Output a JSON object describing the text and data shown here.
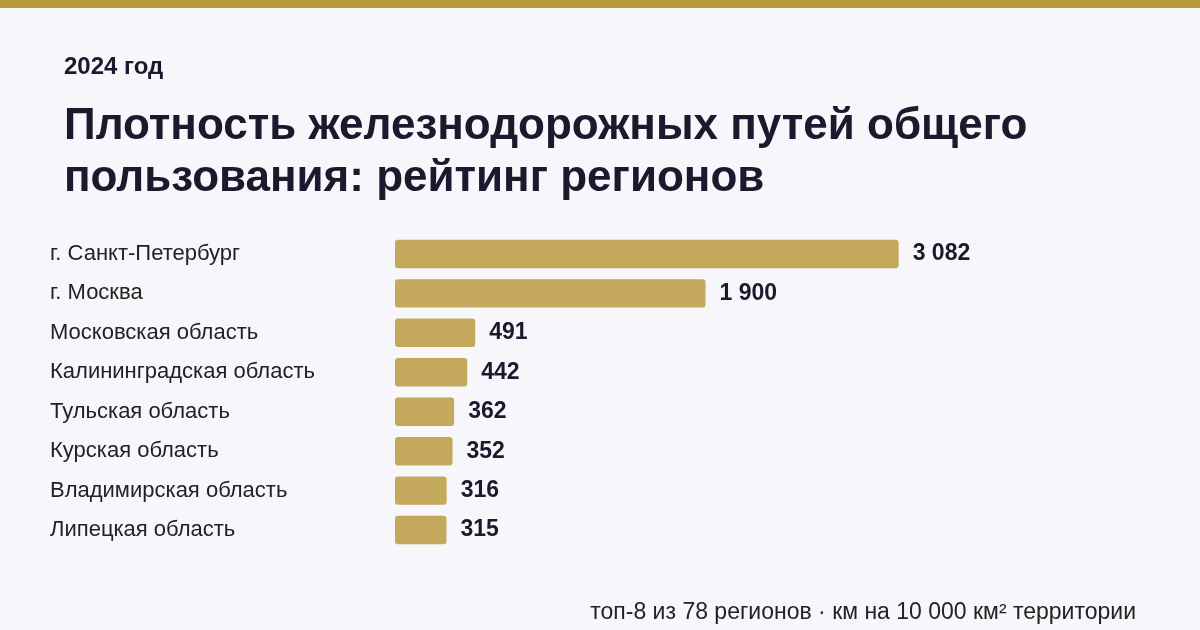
{
  "chart_data": {
    "type": "bar",
    "orientation": "horizontal",
    "title": "Плотность железнодорожных путей общего пользования: рейтинг регионов",
    "subtitle": "2024 год",
    "categories": [
      "г. Санкт-Петербург",
      "г. Москва",
      "Московская область",
      "Калининградская область",
      "Тульская область",
      "Курская область",
      "Владимирская область",
      "Липецкая область"
    ],
    "values": [
      3082,
      1900,
      491,
      442,
      362,
      352,
      316,
      315
    ],
    "value_labels": [
      "3 082",
      "1 900",
      "491",
      "442",
      "362",
      "352",
      "316",
      "315"
    ],
    "color": "#c4a85c",
    "tick_labels": "y",
    "annotations": [
      "топ-8 из 78 регионов · км на 10 000 км² территории"
    ]
  }
}
